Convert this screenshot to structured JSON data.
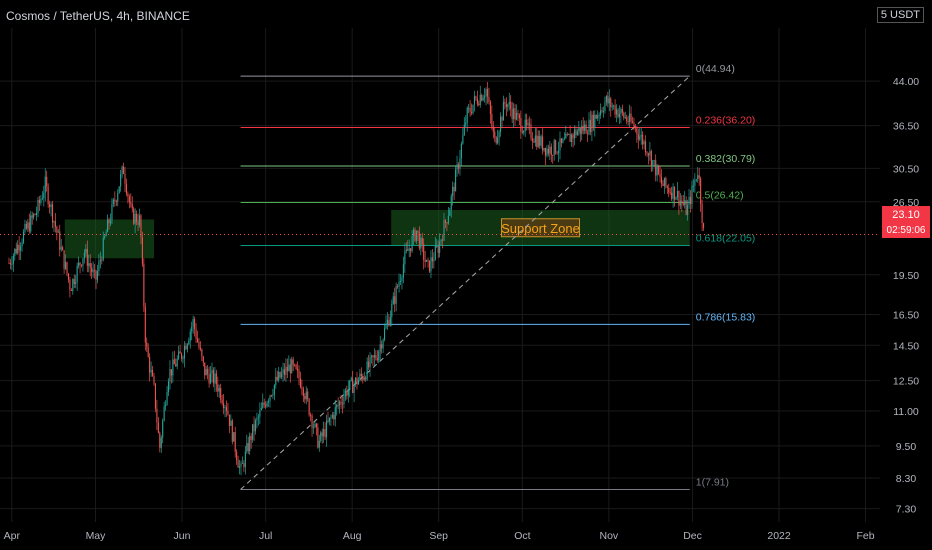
{
  "header": {
    "title": "Cosmos / TetherUS, 4h, BINANCE",
    "unit": "5 USDT"
  },
  "price_label": {
    "price": "23.10",
    "countdown": "02:59:06"
  },
  "colors": {
    "bg": "#000000",
    "up": "#26a69a",
    "down": "#ef5350",
    "text": "#b2b5be",
    "grid": "#1a1a1a"
  },
  "chart_data": {
    "type": "candlestick",
    "title": "Cosmos / TetherUS, 4h, BINANCE",
    "x_ticks": [
      "Apr",
      "May",
      "Jun",
      "Jul",
      "Aug",
      "Sep",
      "Oct",
      "Nov",
      "Dec",
      "2022",
      "Feb"
    ],
    "y_ticks": [
      "44.00",
      "36.50",
      "30.50",
      "26.50",
      "19.50",
      "16.50",
      "14.50",
      "12.50",
      "11.00",
      "9.50",
      "8.30",
      "7.30"
    ],
    "y_scale": "log",
    "ylim": [
      6.9,
      55.0
    ],
    "current_price": 23.1,
    "fib_levels": [
      {
        "label": "0(44.94)",
        "value": 44.94,
        "color": "#9598a1"
      },
      {
        "label": "0.236(36.20)",
        "value": 36.2,
        "color": "#f23645"
      },
      {
        "label": "0.382(30.79)",
        "value": 30.79,
        "color": "#81c784"
      },
      {
        "label": "0.5(26.42)",
        "value": 26.42,
        "color": "#4caf50"
      },
      {
        "label": "0.618(22.05)",
        "value": 22.05,
        "color": "#089981"
      },
      {
        "label": "0.786(15.83)",
        "value": 15.83,
        "color": "#64b5f6"
      },
      {
        "label": "1(7.91)",
        "value": 7.91,
        "color": "#787b86"
      }
    ],
    "fib_range": {
      "start_date": "2021-06-22",
      "end_date": "2021-11-30"
    },
    "zones": [
      {
        "label": "",
        "start_date": "2021-04-20",
        "end_date": "2021-05-22",
        "low": 20.9,
        "high": 24.6
      },
      {
        "label": "Support Zone",
        "start_date": "2021-08-15",
        "end_date": "2021-11-30",
        "low": 22.05,
        "high": 25.6
      }
    ],
    "trendline": {
      "from": {
        "date": "2021-06-22",
        "value": 7.91
      },
      "to": {
        "date": "2021-11-30",
        "value": 44.94
      }
    },
    "price_path": [
      [
        "2021-03-31",
        20.5
      ],
      [
        "2021-04-05",
        23.0
      ],
      [
        "2021-04-10",
        25.5
      ],
      [
        "2021-04-13",
        28.5
      ],
      [
        "2021-04-17",
        23.5
      ],
      [
        "2021-04-22",
        18.5
      ],
      [
        "2021-04-27",
        21.5
      ],
      [
        "2021-05-01",
        19.0
      ],
      [
        "2021-05-05",
        23.5
      ],
      [
        "2021-05-09",
        28.0
      ],
      [
        "2021-05-11",
        30.5
      ],
      [
        "2021-05-14",
        25.0
      ],
      [
        "2021-05-17",
        24.5
      ],
      [
        "2021-05-19",
        14.5
      ],
      [
        "2021-05-22",
        12.0
      ],
      [
        "2021-05-24",
        9.4
      ],
      [
        "2021-05-27",
        12.8
      ],
      [
        "2021-06-01",
        14.0
      ],
      [
        "2021-06-05",
        16.0
      ],
      [
        "2021-06-09",
        13.0
      ],
      [
        "2021-06-13",
        12.5
      ],
      [
        "2021-06-17",
        11.2
      ],
      [
        "2021-06-22",
        8.5
      ],
      [
        "2021-06-26",
        10.0
      ],
      [
        "2021-07-01",
        11.5
      ],
      [
        "2021-07-05",
        12.5
      ],
      [
        "2021-07-10",
        13.3
      ],
      [
        "2021-07-14",
        12.4
      ],
      [
        "2021-07-20",
        9.6
      ],
      [
        "2021-07-25",
        10.8
      ],
      [
        "2021-07-30",
        12.0
      ],
      [
        "2021-08-05",
        12.8
      ],
      [
        "2021-08-10",
        14.0
      ],
      [
        "2021-08-15",
        16.8
      ],
      [
        "2021-08-20",
        21.0
      ],
      [
        "2021-08-24",
        23.5
      ],
      [
        "2021-08-28",
        20.0
      ],
      [
        "2021-09-01",
        22.0
      ],
      [
        "2021-09-05",
        26.0
      ],
      [
        "2021-09-08",
        31.0
      ],
      [
        "2021-09-11",
        38.0
      ],
      [
        "2021-09-14",
        40.5
      ],
      [
        "2021-09-18",
        42.5
      ],
      [
        "2021-09-21",
        34.0
      ],
      [
        "2021-09-25",
        40.5
      ],
      [
        "2021-09-30",
        37.0
      ],
      [
        "2021-10-05",
        35.0
      ],
      [
        "2021-10-10",
        33.0
      ],
      [
        "2021-10-15",
        33.5
      ],
      [
        "2021-10-20",
        35.5
      ],
      [
        "2021-10-25",
        36.5
      ],
      [
        "2021-10-31",
        40.5
      ],
      [
        "2021-11-05",
        38.5
      ],
      [
        "2021-11-10",
        36.5
      ],
      [
        "2021-11-15",
        33.0
      ],
      [
        "2021-11-20",
        28.5
      ],
      [
        "2021-11-25",
        27.5
      ],
      [
        "2021-11-29",
        25.5
      ],
      [
        "2021-12-03",
        30.5
      ],
      [
        "2021-12-05",
        23.1
      ]
    ]
  }
}
